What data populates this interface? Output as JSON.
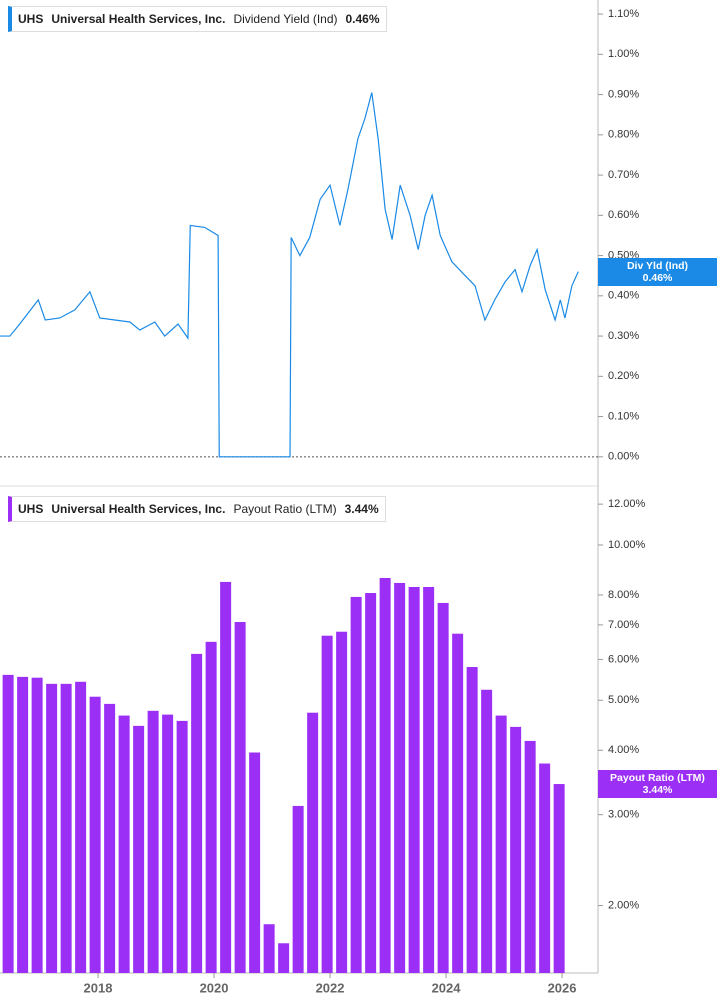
{
  "chart_data": [
    {
      "type": "line",
      "ticker": "UHS",
      "company": "Universal Health Services, Inc.",
      "current_label": "0.46%",
      "current_value": 0.46,
      "badge_label": "Div Yld (Ind)",
      "xlim": [
        2016.31,
        2026.62
      ],
      "ylim": [
        -0.07,
        1.135
      ],
      "zero_line": true,
      "yticks": [
        {
          "value": 1.1,
          "label": "1.10%"
        },
        {
          "value": 1.0,
          "label": "1.00%"
        },
        {
          "value": 0.9,
          "label": "0.90%"
        },
        {
          "value": 0.8,
          "label": "0.80%"
        },
        {
          "value": 0.7,
          "label": "0.70%"
        },
        {
          "value": 0.6,
          "label": "0.60%"
        },
        {
          "value": 0.5,
          "label": "0.50%"
        },
        {
          "value": 0.4,
          "label": "0.40%"
        },
        {
          "value": 0.3,
          "label": "0.30%"
        },
        {
          "value": 0.2,
          "label": "0.20%"
        },
        {
          "value": 0.1,
          "label": "0.10%"
        },
        {
          "value": 0,
          "label": "0.00%"
        }
      ],
      "x": [
        2016.31,
        2016.48,
        2016.65,
        2016.97,
        2017.09,
        2017.34,
        2017.6,
        2017.86,
        2018.03,
        2018.29,
        2018.55,
        2018.72,
        2018.98,
        2019.15,
        2019.38,
        2019.55,
        2019.59,
        2019.84,
        2020.07,
        2020.09,
        2021.31,
        2021.33,
        2021.48,
        2021.65,
        2021.83,
        2022.0,
        2022.17,
        2022.31,
        2022.48,
        2022.6,
        2022.72,
        2022.83,
        2022.95,
        2023.07,
        2023.21,
        2023.38,
        2023.52,
        2023.64,
        2023.76,
        2023.9,
        2024.1,
        2024.33,
        2024.5,
        2024.67,
        2024.84,
        2025.02,
        2025.19,
        2025.31,
        2025.45,
        2025.57,
        2025.71,
        2025.88,
        2025.97,
        2026.05,
        2026.17,
        2026.28
      ],
      "series": [
        {
          "name": "Dividend Yield (Ind)",
          "color": "#1a8ae6",
          "values": [
            0.3,
            0.3,
            0.33,
            0.39,
            0.34,
            0.345,
            0.365,
            0.41,
            0.345,
            0.34,
            0.335,
            0.315,
            0.335,
            0.3,
            0.33,
            0.295,
            0.575,
            0.57,
            0.55,
            0,
            0,
            0.545,
            0.5,
            0.545,
            0.64,
            0.675,
            0.575,
            0.665,
            0.79,
            0.84,
            0.905,
            0.79,
            0.615,
            0.54,
            0.675,
            0.6,
            0.515,
            0.6,
            0.65,
            0.55,
            0.485,
            0.45,
            0.425,
            0.34,
            0.39,
            0.435,
            0.465,
            0.41,
            0.475,
            0.515,
            0.415,
            0.34,
            0.39,
            0.345,
            0.425,
            0.46
          ]
        }
      ]
    },
    {
      "type": "bar",
      "ticker": "UHS",
      "company": "Universal Health Services, Inc.",
      "current_label": "3.44%",
      "current_value": 3.44,
      "badge_label": "Payout Ratio (LTM)",
      "xlim": [
        2016.31,
        2026.62
      ],
      "ylim": [
        1.48,
        13.07
      ],
      "log_scale": true,
      "yticks": [
        {
          "value": 12,
          "label": "12.00%"
        },
        {
          "value": 10,
          "label": "10.00%"
        },
        {
          "value": 8,
          "label": "8.00%"
        },
        {
          "value": 7,
          "label": "7.00%"
        },
        {
          "value": 6,
          "label": "6.00%"
        },
        {
          "value": 5,
          "label": "5.00%"
        },
        {
          "value": 4,
          "label": "4.00%"
        },
        {
          "value": 3,
          "label": "3.00%"
        },
        {
          "value": 2,
          "label": "2.00%"
        }
      ],
      "xticks": [
        2018,
        2020,
        2022,
        2024,
        2026
      ],
      "x": [
        2016.45,
        2016.7,
        2016.95,
        2017.2,
        2017.45,
        2017.7,
        2017.95,
        2018.2,
        2018.45,
        2018.7,
        2018.95,
        2019.2,
        2019.45,
        2019.7,
        2019.95,
        2020.2,
        2020.45,
        2020.7,
        2020.95,
        2021.2,
        2021.45,
        2021.7,
        2021.95,
        2022.2,
        2022.45,
        2022.7,
        2022.95,
        2023.2,
        2023.45,
        2023.7,
        2023.95,
        2024.2,
        2024.45,
        2024.7,
        2024.95,
        2025.2,
        2025.45,
        2025.7,
        2025.95
      ],
      "series": [
        {
          "name": "Payout Ratio (LTM)",
          "color": "#9b2ff5",
          "values": [
            5.6,
            5.55,
            5.53,
            5.38,
            5.38,
            5.43,
            5.08,
            4.92,
            4.67,
            4.46,
            4.77,
            4.69,
            4.56,
            6.15,
            6.49,
            8.48,
            7.09,
            3.96,
            1.84,
            1.69,
            3.12,
            4.73,
            6.67,
            6.79,
            7.93,
            8.07,
            8.63,
            8.44,
            8.29,
            8.29,
            7.72,
            6.73,
            5.8,
            5.24,
            4.67,
            4.44,
            4.17,
            3.77,
            3.44
          ]
        }
      ]
    }
  ]
}
